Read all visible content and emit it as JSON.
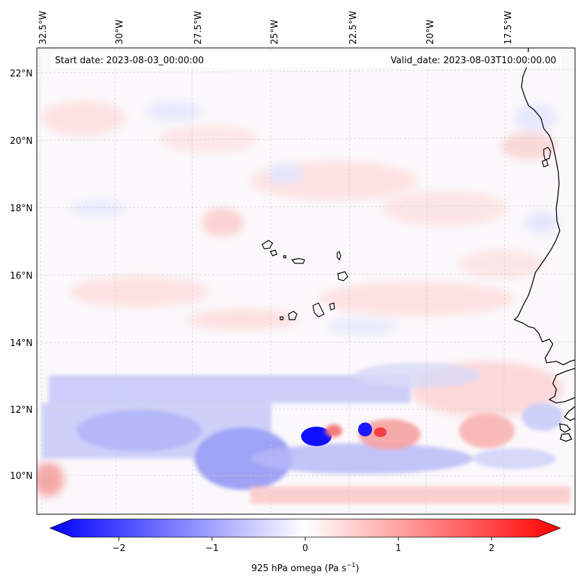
{
  "map": {
    "start_date": "Start date: 2023-08-03_00:00:00",
    "valid_date": "Valid_date: 2023-08-03T10:00:00.00",
    "lon_labels": [
      "32.5°W",
      "30°W",
      "27.5°W",
      "25°W",
      "22.5°W",
      "20°W",
      "17.5°W"
    ],
    "lat_labels": [
      "22°N",
      "20°N",
      "18°N",
      "16°N",
      "14°N",
      "12°N",
      "10°N"
    ],
    "field": "925 hPa omega",
    "colors": {
      "negative": "#0000ff",
      "neutral": "#ffffff",
      "positive": "#ff0000",
      "coastline": "#000000",
      "gridline": "#cccccc"
    }
  },
  "colorbar": {
    "ticks": [
      "−2",
      "−1",
      "0",
      "1",
      "2"
    ],
    "tick_values": [
      -2,
      -1,
      0,
      1,
      2
    ],
    "range": [
      -2.5,
      2.5
    ],
    "label_prefix": "925 hPa omega (Pa s",
    "label_exp": "−1",
    "label_suffix": ")",
    "colormap": "bwr"
  }
}
